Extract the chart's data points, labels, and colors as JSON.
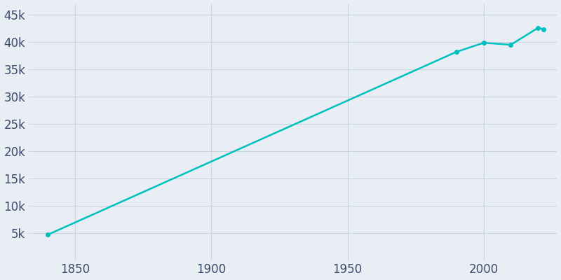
{
  "years": [
    1840,
    1990,
    2000,
    2010,
    2020,
    2022
  ],
  "population": [
    4682,
    38195,
    39862,
    39502,
    42603,
    42375
  ],
  "line_color": "#00BFBF",
  "marker_color": "#00BFBF",
  "bg_color": "#e8eef4",
  "grid_color": "#d0dae6",
  "text_color": "#3a4a6b",
  "ylim": [
    0,
    47000
  ],
  "ytick_labels": [
    "5k",
    "10k",
    "15k",
    "20k",
    "25k",
    "30k",
    "35k",
    "40k",
    "45k"
  ],
  "ytick_values": [
    5000,
    10000,
    15000,
    20000,
    25000,
    30000,
    35000,
    40000,
    45000
  ],
  "xlim": [
    1833,
    2027
  ],
  "xtick_values": [
    1850,
    1900,
    1950,
    2000
  ],
  "xtick_labels": [
    "1850",
    "1900",
    "1950",
    "2000"
  ],
  "marker_size": 4,
  "line_width": 1.8,
  "tick_fontsize": 12,
  "figsize": [
    8.0,
    4.0
  ],
  "dpi": 100
}
